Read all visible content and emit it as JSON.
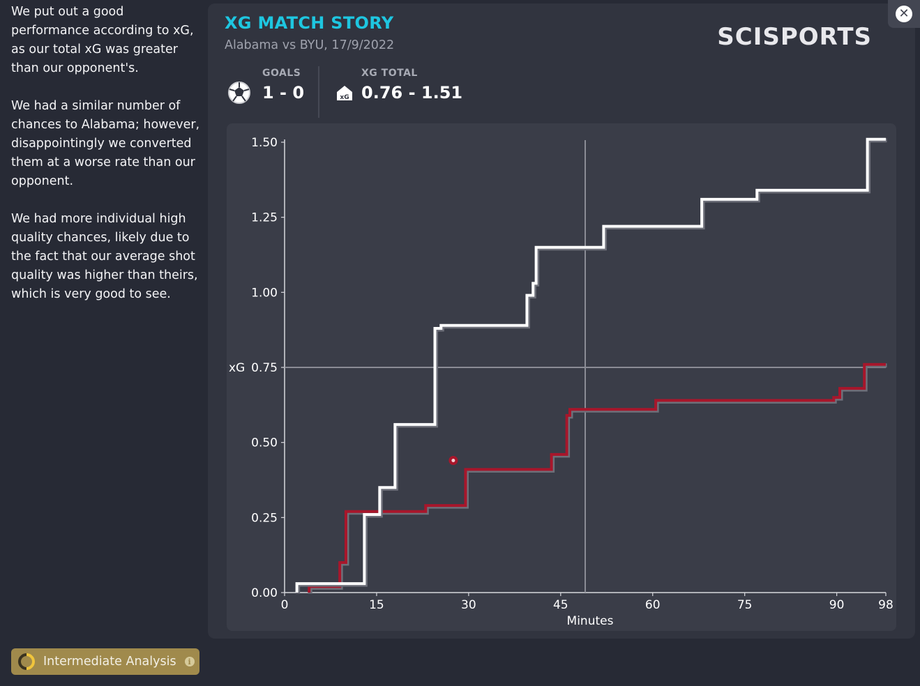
{
  "narrative": {
    "paragraphs": [
      "We put out a good performance according to xG, as our total xG was greater than our opponent's.",
      "We had a similar number of chances to Alabama; however, disappointingly we converted them at a worse rate than our opponent.",
      "We had more individual high quality chances, likely due to the fact that our average shot quality was higher than theirs, which is very good to see."
    ]
  },
  "badge": {
    "label": "Intermediate Analysis",
    "info_icon": "info-icon",
    "ring_color": "#f0c53c"
  },
  "header": {
    "title": "XG MATCH STORY",
    "subtitle": "Alabama vs BYU, 17/9/2022",
    "logo": "SCISPORTS",
    "title_color": "#1ec6e0"
  },
  "stats": {
    "goals": {
      "label": "GOALS",
      "value": "1 - 0",
      "icon": "soccer-ball-icon"
    },
    "xg_total": {
      "label": "XG TOTAL",
      "value": "0.76 - 1.51",
      "icon": "xg-icon"
    }
  },
  "close_icon": "close-icon",
  "chart_data": {
    "type": "line",
    "step": true,
    "xlabel": "Minutes",
    "ylabel": "xG",
    "xlim": [
      0,
      98
    ],
    "ylim": [
      0,
      1.5
    ],
    "x_ticks": [
      0,
      15,
      30,
      45,
      60,
      75,
      90,
      98
    ],
    "y_ticks": [
      0.0,
      0.25,
      0.5,
      0.75,
      1.0,
      1.25,
      1.5
    ],
    "y_tick_labels": [
      "0.00",
      "0.25",
      "0.50",
      "0.75",
      "1.00",
      "1.25",
      "1.50"
    ],
    "reference_lines": {
      "x": 49,
      "y": 0.75
    },
    "series": [
      {
        "color": "#ffffff",
        "x": [
          2,
          13,
          15.5,
          18,
          24.5,
          25.5,
          39.5,
          40.5,
          41,
          52,
          68,
          77,
          95,
          98
        ],
        "y": [
          0.03,
          0.26,
          0.35,
          0.56,
          0.88,
          0.89,
          0.99,
          1.03,
          1.15,
          1.22,
          1.31,
          1.34,
          1.51,
          1.51
        ]
      },
      {
        "color": "#a8162b",
        "x": [
          4,
          9,
          10,
          23,
          29.5,
          43.5,
          46,
          46.5,
          60.5,
          89.5,
          90.5,
          94.5,
          98
        ],
        "y": [
          0.02,
          0.1,
          0.27,
          0.29,
          0.41,
          0.46,
          0.59,
          0.61,
          0.64,
          0.65,
          0.68,
          0.76,
          0.76
        ]
      }
    ],
    "goal_markers": [
      {
        "minute": 27.5,
        "xg": 0.44,
        "color": "#a8162b"
      }
    ]
  }
}
